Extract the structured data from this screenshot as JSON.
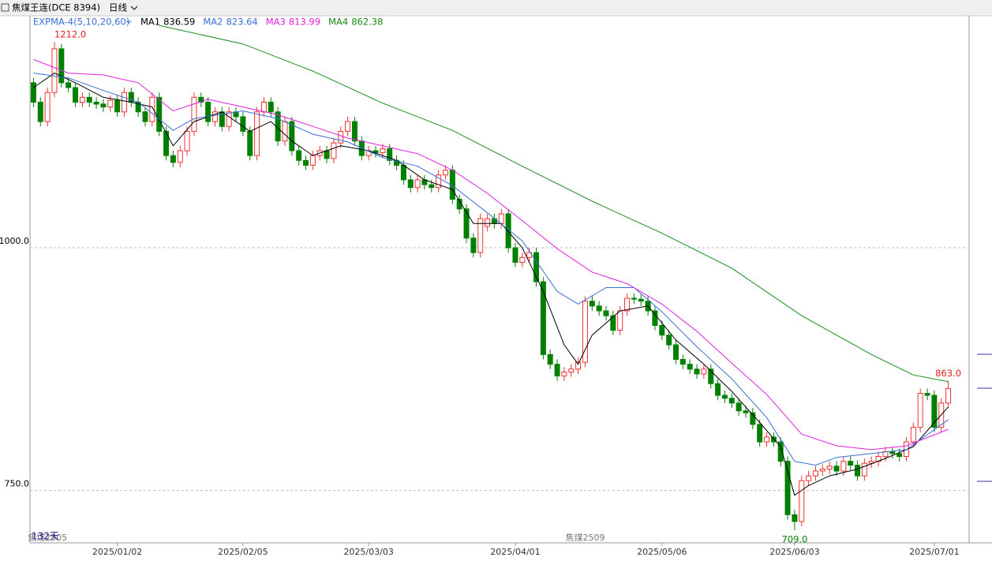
{
  "chart_data": {
    "type": "candlestick",
    "title": "焦煤王连(DCE 8394)",
    "period": "日线",
    "indicator": "EXPMA-4(5,10,20,60)",
    "bar_count_label": "132天",
    "contracts": [
      {
        "label": "焦煤2505",
        "value": 2
      },
      {
        "label": "焦煤2509",
        "value": 79
      }
    ],
    "up_color": "#f03232",
    "down_color": "#008000",
    "ylim": [
      696,
      1239
    ],
    "yticks": [
      {
        "value": 1000,
        "label": "1000.0"
      },
      {
        "value": 750,
        "label": "750.0"
      }
    ],
    "xlim": [
      -0.5,
      131.5
    ],
    "xticks": [
      {
        "value": 12,
        "label": "2025/01/02"
      },
      {
        "value": 30,
        "label": "2025/02/05"
      },
      {
        "value": 48,
        "label": "2025/03/03"
      },
      {
        "value": 69,
        "label": "2025/04/01"
      },
      {
        "value": 90,
        "label": "2025/05/06"
      },
      {
        "value": 109,
        "label": "2025/06/03"
      },
      {
        "value": 129,
        "label": "2025/07/01"
      }
    ],
    "grid": true,
    "open": [
      1170,
      1150,
      1130,
      1160,
      1205,
      1170,
      1165,
      1150,
      1155,
      1150,
      1148,
      1145,
      1152,
      1140,
      1160,
      1150,
      1140,
      1130,
      1155,
      1120,
      1095,
      1088,
      1100,
      1120,
      1155,
      1150,
      1130,
      1140,
      1125,
      1140,
      1135,
      1120,
      1095,
      1140,
      1150,
      1140,
      1110,
      1130,
      1100,
      1090,
      1085,
      1095,
      1100,
      1092,
      1108,
      1120,
      1130,
      1110,
      1095,
      1100,
      1098,
      1102,
      1090,
      1085,
      1070,
      1062,
      1070,
      1065,
      1062,
      1075,
      1080,
      1050,
      1040,
      1010,
      995,
      1022,
      1030,
      1025,
      1035,
      1000,
      985,
      990,
      995,
      965,
      890,
      880,
      868,
      872,
      875,
      882,
      945,
      940,
      935,
      930,
      915,
      935,
      948,
      947,
      945,
      935,
      920,
      910,
      900,
      885,
      880,
      875,
      870,
      875,
      860,
      848,
      845,
      840,
      832,
      830,
      818,
      800,
      805,
      800,
      780,
      725,
      718,
      760,
      765,
      770,
      772,
      775,
      770,
      780,
      776,
      765,
      778,
      780,
      785,
      790,
      788,
      785,
      800,
      815,
      850,
      848,
      815,
      840
    ],
    "high": [
      1175,
      1155,
      1165,
      1212,
      1210,
      1175,
      1170,
      1160,
      1160,
      1155,
      1153,
      1157,
      1157,
      1165,
      1165,
      1155,
      1145,
      1160,
      1160,
      1125,
      1100,
      1105,
      1125,
      1160,
      1160,
      1155,
      1145,
      1145,
      1145,
      1145,
      1140,
      1125,
      1145,
      1155,
      1155,
      1145,
      1135,
      1135,
      1105,
      1095,
      1100,
      1105,
      1105,
      1113,
      1125,
      1135,
      1135,
      1115,
      1105,
      1105,
      1107,
      1107,
      1095,
      1090,
      1075,
      1075,
      1075,
      1070,
      1080,
      1085,
      1085,
      1055,
      1045,
      1015,
      1035,
      1035,
      1035,
      1040,
      1040,
      1005,
      995,
      1000,
      1000,
      970,
      895,
      885,
      877,
      880,
      887,
      950,
      950,
      945,
      940,
      935,
      940,
      953,
      953,
      952,
      950,
      940,
      925,
      915,
      905,
      890,
      885,
      880,
      880,
      880,
      865,
      853,
      850,
      845,
      837,
      835,
      823,
      810,
      810,
      805,
      785,
      730,
      765,
      770,
      775,
      777,
      780,
      780,
      785,
      785,
      781,
      783,
      785,
      790,
      795,
      795,
      793,
      805,
      820,
      855,
      855,
      853,
      845,
      863
    ],
    "low": [
      1145,
      1125,
      1125,
      1155,
      1165,
      1160,
      1145,
      1145,
      1145,
      1143,
      1140,
      1140,
      1135,
      1135,
      1145,
      1135,
      1125,
      1125,
      1115,
      1090,
      1083,
      1083,
      1095,
      1115,
      1145,
      1125,
      1125,
      1120,
      1120,
      1130,
      1115,
      1090,
      1090,
      1135,
      1135,
      1105,
      1105,
      1095,
      1085,
      1080,
      1080,
      1090,
      1087,
      1087,
      1103,
      1115,
      1105,
      1090,
      1090,
      1093,
      1093,
      1085,
      1080,
      1065,
      1057,
      1057,
      1060,
      1057,
      1057,
      1070,
      1045,
      1035,
      1005,
      990,
      990,
      1017,
      1020,
      1020,
      995,
      980,
      980,
      985,
      960,
      885,
      875,
      863,
      863,
      867,
      870,
      877,
      935,
      930,
      925,
      910,
      910,
      930,
      942,
      940,
      930,
      915,
      905,
      895,
      880,
      875,
      870,
      865,
      865,
      855,
      843,
      840,
      835,
      827,
      825,
      813,
      795,
      795,
      795,
      775,
      720,
      709,
      713,
      755,
      760,
      765,
      767,
      765,
      765,
      771,
      760,
      760,
      773,
      775,
      780,
      783,
      780,
      780,
      795,
      810,
      843,
      810,
      810,
      835
    ],
    "close": [
      1150,
      1130,
      1160,
      1205,
      1170,
      1165,
      1150,
      1155,
      1150,
      1148,
      1145,
      1152,
      1140,
      1160,
      1150,
      1140,
      1130,
      1155,
      1120,
      1095,
      1088,
      1100,
      1120,
      1155,
      1150,
      1130,
      1140,
      1125,
      1140,
      1135,
      1120,
      1095,
      1140,
      1150,
      1140,
      1110,
      1130,
      1100,
      1090,
      1085,
      1095,
      1100,
      1092,
      1108,
      1120,
      1130,
      1110,
      1095,
      1100,
      1098,
      1102,
      1090,
      1085,
      1070,
      1062,
      1070,
      1065,
      1062,
      1075,
      1080,
      1050,
      1040,
      1010,
      995,
      1030,
      1030,
      1025,
      1035,
      1000,
      985,
      990,
      995,
      965,
      890,
      880,
      868,
      872,
      875,
      882,
      945,
      940,
      935,
      930,
      915,
      935,
      948,
      947,
      945,
      935,
      920,
      910,
      900,
      885,
      880,
      875,
      870,
      875,
      860,
      848,
      845,
      840,
      832,
      830,
      818,
      800,
      805,
      800,
      780,
      725,
      718,
      760,
      765,
      770,
      772,
      775,
      770,
      780,
      776,
      765,
      778,
      780,
      785,
      790,
      788,
      785,
      800,
      815,
      850,
      848,
      815,
      840,
      855
    ],
    "series": [
      {
        "name": "MA1",
        "latest": 836.59,
        "color": "#000000",
        "x": [
          0,
          3,
          6,
          10,
          14,
          17,
          20,
          23,
          27,
          31,
          34,
          37,
          40,
          44,
          48,
          52,
          56,
          60,
          63,
          67,
          70,
          73,
          76,
          78,
          80,
          84,
          88,
          92,
          96,
          100,
          104,
          107,
          109,
          111,
          114,
          118,
          122,
          126,
          129,
          131
        ],
        "values": [
          1165,
          1180,
          1170,
          1155,
          1150,
          1145,
          1105,
          1130,
          1140,
          1120,
          1130,
          1110,
          1095,
          1105,
          1100,
          1090,
          1070,
          1060,
          1025,
          1025,
          1000,
          955,
          900,
          880,
          910,
          935,
          940,
          905,
          880,
          852,
          820,
          795,
          745,
          755,
          765,
          772,
          783,
          795,
          820,
          836
        ]
      },
      {
        "name": "MA2",
        "latest": 823.64,
        "color": "#3a6fd8",
        "x": [
          0,
          5,
          10,
          15,
          20,
          23,
          30,
          35,
          40,
          45,
          50,
          55,
          60,
          65,
          70,
          75,
          78,
          82,
          86,
          90,
          95,
          100,
          105,
          109,
          112,
          115,
          120,
          125,
          131
        ],
        "values": [
          1180,
          1175,
          1162,
          1150,
          1121,
          1133,
          1141,
          1133,
          1117,
          1109,
          1093,
          1084,
          1064,
          1036,
          1007,
          955,
          942,
          959,
          959,
          934,
          898,
          865,
          825,
          780,
          776,
          784,
          788,
          792,
          823
        ]
      },
      {
        "name": "MA3",
        "latest": 813.99,
        "color": "#e020e0",
        "x": [
          0,
          5,
          10,
          15,
          20,
          25,
          30,
          35,
          40,
          45,
          50,
          55,
          60,
          65,
          70,
          75,
          80,
          85,
          90,
          95,
          100,
          105,
          110,
          115,
          120,
          125,
          131
        ],
        "values": [
          1194,
          1180,
          1178,
          1170,
          1141,
          1153,
          1145,
          1137,
          1125,
          1113,
          1105,
          1097,
          1080,
          1056,
          1028,
          999,
          975,
          963,
          942,
          914,
          881,
          849,
          808,
          796,
          792,
          796,
          813
        ]
      },
      {
        "name": "MA4",
        "latest": 862.38,
        "color": "#1a8a1a",
        "x": [
          18,
          30,
          40,
          50,
          60,
          70,
          80,
          90,
          100,
          110,
          120,
          126,
          131
        ],
        "values": [
          1229,
          1210,
          1182,
          1149,
          1121,
          1084,
          1048,
          1015,
          979,
          930,
          890,
          869,
          862
        ]
      }
    ],
    "annotations": [
      {
        "label": "1212.0",
        "value": 1212,
        "x": 3
      },
      {
        "label": "863.0",
        "value": 863,
        "x": 131
      },
      {
        "label": "709.0",
        "value": 709,
        "x": 109
      }
    ]
  }
}
